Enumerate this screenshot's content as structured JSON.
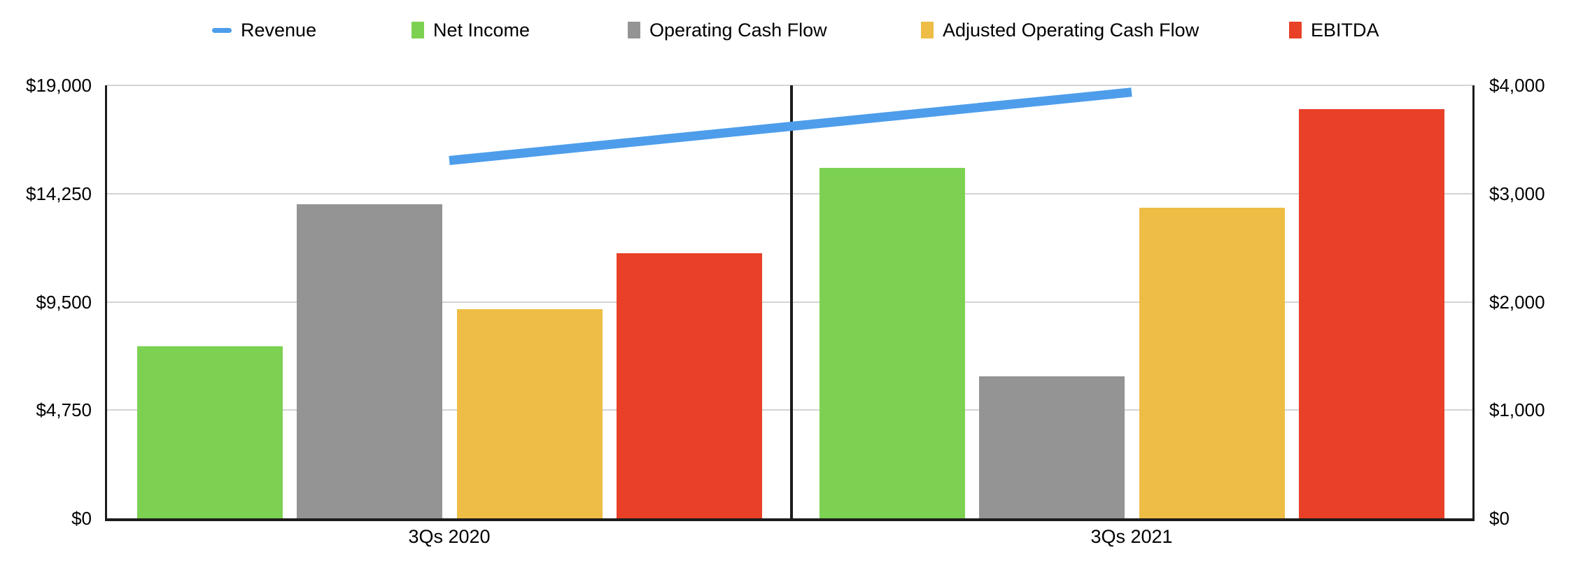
{
  "legend": {
    "items": [
      {
        "label": "Revenue",
        "color": "#4d9deb",
        "marker": "dash"
      },
      {
        "label": "Net Income",
        "color": "#7cd152",
        "marker": "square"
      },
      {
        "label": "Operating Cash Flow",
        "color": "#949494",
        "marker": "square"
      },
      {
        "label": "Adjusted Operating Cash Flow",
        "color": "#edbd45",
        "marker": "square"
      },
      {
        "label": "EBITDA",
        "color": "#e84128",
        "marker": "square"
      }
    ]
  },
  "chart_data": {
    "type": "combo-bar-line",
    "categories": [
      "3Qs 2020",
      "3Qs 2021"
    ],
    "bar_series": [
      {
        "name": "Net Income",
        "color": "#7cd152",
        "axis": "right",
        "values": [
          1590,
          3240
        ]
      },
      {
        "name": "Operating Cash Flow",
        "color": "#949494",
        "axis": "right",
        "values": [
          2900,
          1310
        ]
      },
      {
        "name": "Adjusted Operating Cash Flow",
        "color": "#edbd45",
        "axis": "right",
        "values": [
          1930,
          2870
        ]
      },
      {
        "name": "EBITDA",
        "color": "#e84128",
        "axis": "right",
        "values": [
          2450,
          3780
        ]
      }
    ],
    "line_series": [
      {
        "name": "Revenue",
        "color": "#4d9deb",
        "axis": "left",
        "values": [
          15700,
          18700
        ]
      }
    ],
    "left_axis": {
      "min": 0,
      "max": 19000,
      "tick_values": [
        0,
        4750,
        9500,
        14250,
        19000
      ],
      "tick_labels": [
        "$0",
        "$4,750",
        "$9,500",
        "$14,250",
        "$19,000"
      ]
    },
    "right_axis": {
      "min": 0,
      "max": 4000,
      "tick_values": [
        0,
        1000,
        2000,
        3000,
        4000
      ],
      "tick_labels": [
        "$0",
        "$1,000",
        "$2,000",
        "$3,000",
        "$4,000"
      ]
    },
    "grid": true,
    "legend_position": "top",
    "title": "",
    "xlabel": "",
    "ylabel": ""
  }
}
